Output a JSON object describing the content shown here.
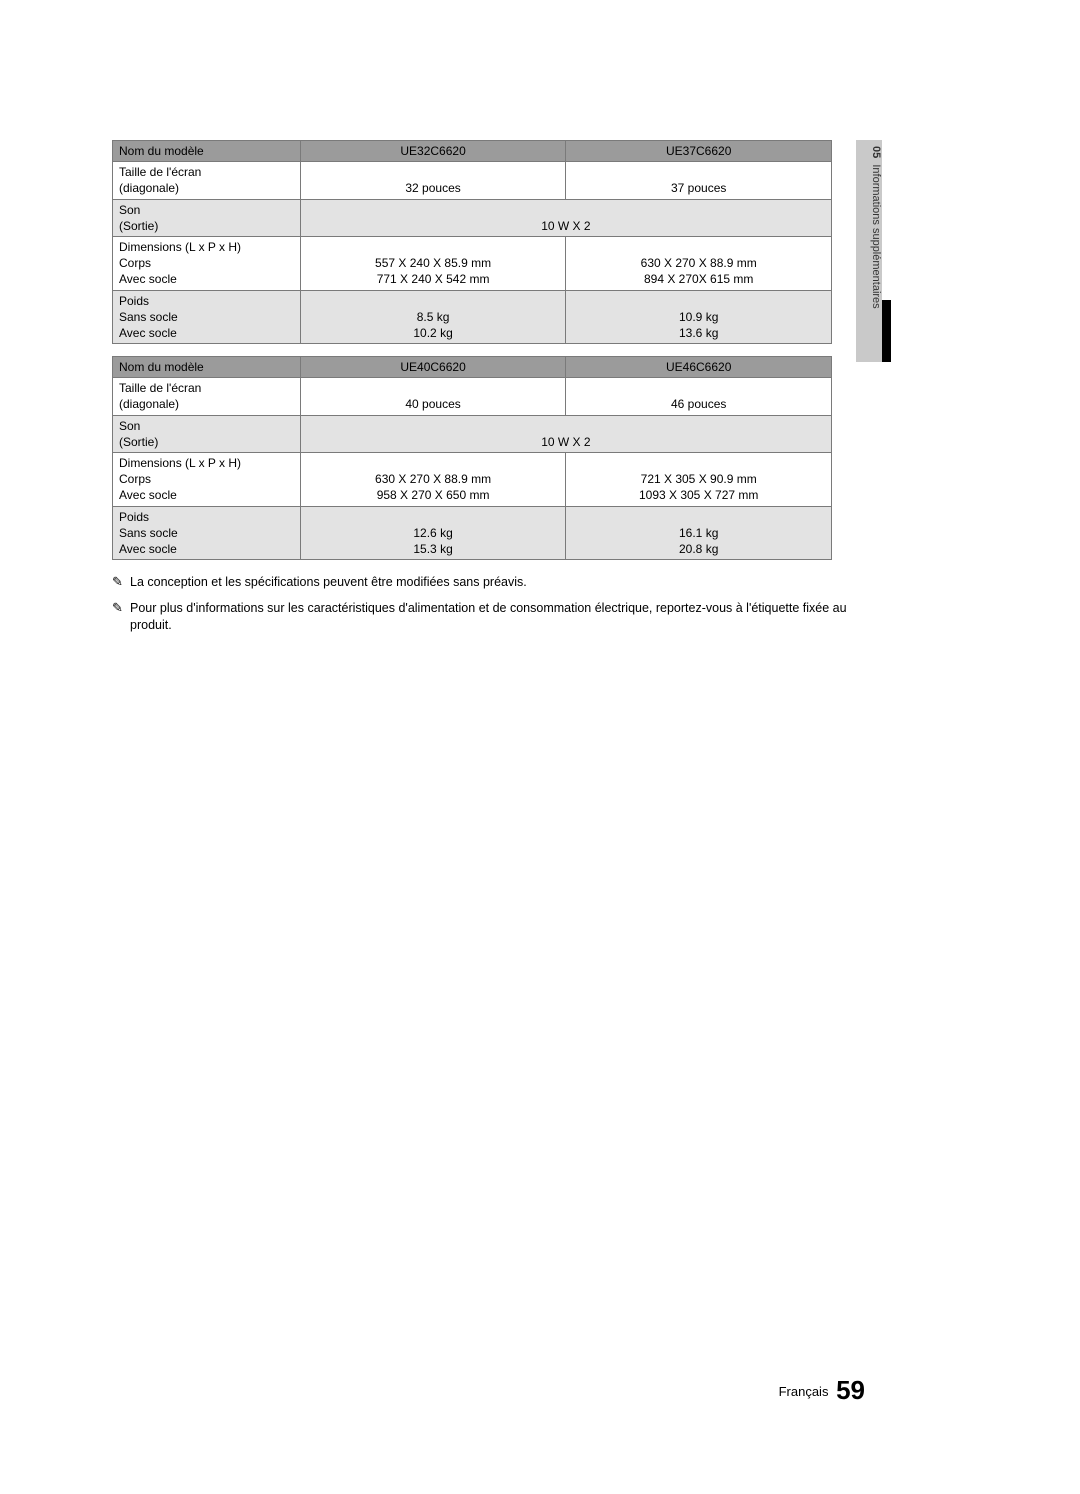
{
  "sidebar": {
    "section_number": "05",
    "section_title": "Informations supplémentaires"
  },
  "tables": [
    {
      "header": {
        "label": "Nom du modèle",
        "col1": "UE32C6620",
        "col2": "UE37C6620"
      },
      "rows": [
        {
          "shade": false,
          "label_lines": [
            "Taille de l'écran",
            "(diagonale)"
          ],
          "col1_lines": [
            "32 pouces"
          ],
          "col2_lines": [
            "37 pouces"
          ],
          "span": false
        },
        {
          "shade": true,
          "label_lines": [
            "Son",
            "(Sortie)"
          ],
          "span": true,
          "span_lines": [
            "10 W X 2"
          ]
        },
        {
          "shade": false,
          "label_lines": [
            "Dimensions (L x P x H)",
            "Corps",
            "Avec socle"
          ],
          "col1_lines": [
            "",
            "557 X 240 X 85.9 mm",
            "771 X 240 X 542 mm"
          ],
          "col2_lines": [
            "",
            "630 X 270 X 88.9 mm",
            "894 X 270X 615 mm"
          ],
          "span": false
        },
        {
          "shade": true,
          "label_lines": [
            "Poids",
            "Sans socle",
            "Avec socle"
          ],
          "col1_lines": [
            "",
            "8.5 kg",
            "10.2 kg"
          ],
          "col2_lines": [
            "",
            "10.9 kg",
            "13.6 kg"
          ],
          "span": false
        }
      ]
    },
    {
      "header": {
        "label": "Nom du modèle",
        "col1": "UE40C6620",
        "col2": "UE46C6620"
      },
      "rows": [
        {
          "shade": false,
          "label_lines": [
            "Taille de l'écran",
            "(diagonale)"
          ],
          "col1_lines": [
            "40 pouces"
          ],
          "col2_lines": [
            "46 pouces"
          ],
          "span": false
        },
        {
          "shade": true,
          "label_lines": [
            "Son",
            "(Sortie)"
          ],
          "span": true,
          "span_lines": [
            "10 W X 2"
          ]
        },
        {
          "shade": false,
          "label_lines": [
            "Dimensions (L x P x H)",
            "Corps",
            "Avec socle"
          ],
          "col1_lines": [
            "",
            "630 X 270 X 88.9 mm",
            "958 X 270 X 650 mm"
          ],
          "col2_lines": [
            "",
            "721 X 305 X 90.9 mm",
            "1093 X 305 X 727 mm"
          ],
          "span": false
        },
        {
          "shade": true,
          "label_lines": [
            "Poids",
            "Sans socle",
            "Avec socle"
          ],
          "col1_lines": [
            "",
            "12.6 kg",
            "15.3 kg"
          ],
          "col2_lines": [
            "",
            "16.1 kg",
            "20.8 kg"
          ],
          "span": false
        }
      ]
    }
  ],
  "notes": [
    "La conception et les spécifications peuvent être modifiées sans préavis.",
    "Pour plus d'informations sur les caractéristiques d'alimentation et de consommation électrique, reportez-vous à l'étiquette fixée au produit."
  ],
  "note_icon": "✎",
  "footer": {
    "lang": "Français",
    "page": "59"
  },
  "colors": {
    "header_bg": "#9b9b9b",
    "shade_bg": "#e3e3e3",
    "border": "#7a7a7a",
    "sidebar_bg": "#c9c9c9",
    "side_black": "#000000"
  }
}
